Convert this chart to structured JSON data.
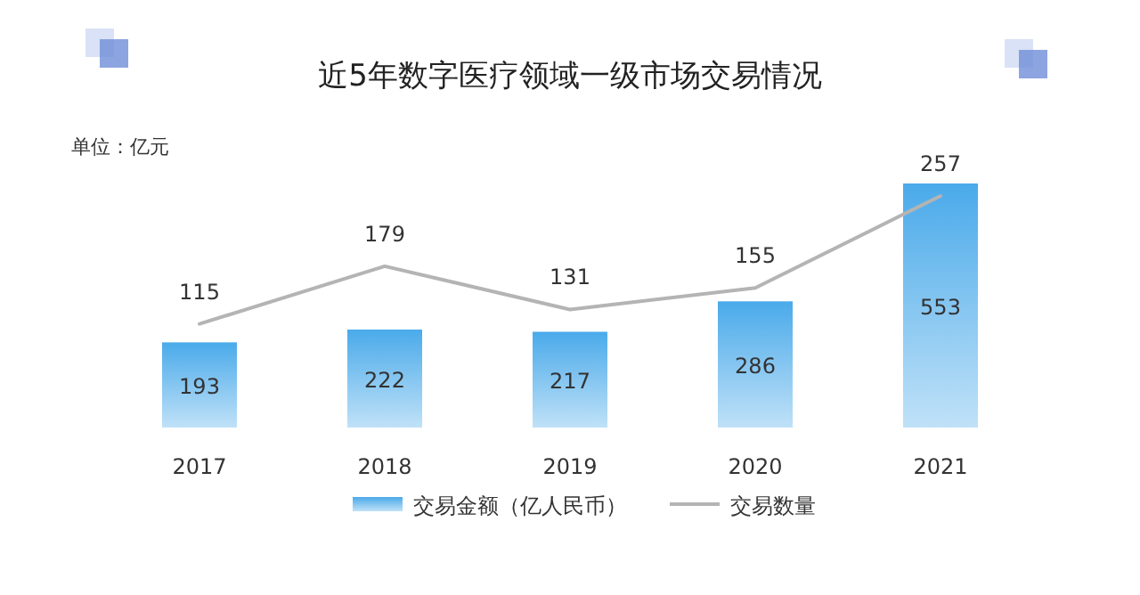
{
  "chart_data": {
    "type": "bar",
    "title": "近5年数字医疗领域一级市场交易情况",
    "annotations": [
      "单位：亿元"
    ],
    "categories": [
      "2017",
      "2018",
      "2019",
      "2020",
      "2021"
    ],
    "series": [
      {
        "name": "交易金额（亿人民币）",
        "color": "#4aaaea",
        "values": [
          193,
          222,
          217,
          286,
          553
        ]
      },
      {
        "name": "交易数量",
        "type": "line",
        "axis": "y2",
        "color": "#b4b4b4",
        "values": [
          115,
          179,
          131,
          155,
          257
        ]
      }
    ],
    "data_labels": true,
    "legend": "bottom",
    "grid": false,
    "marker": "none",
    "line_style": "solid"
  }
}
